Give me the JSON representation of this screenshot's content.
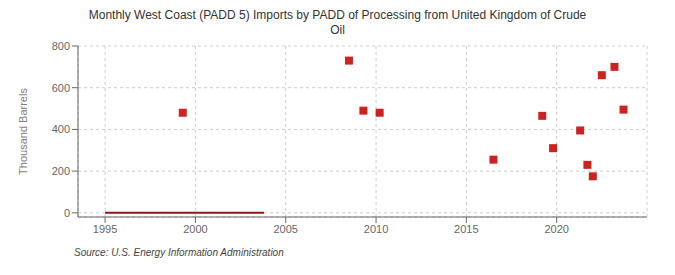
{
  "chart_data": {
    "type": "scatter",
    "title": "Monthly West Coast (PADD 5) Imports by PADD of Processing from United Kingdom of Crude\nOil",
    "ylabel": "Thousand Barrels",
    "annotations": [
      "Source: U.S. Energy Information Administration"
    ],
    "xlim": [
      1993.5,
      2025
    ],
    "xticks": [
      1995,
      2000,
      2005,
      2010,
      2015,
      2020
    ],
    "ylim": [
      -20,
      800
    ],
    "yticks": [
      0,
      200,
      400,
      600,
      800
    ],
    "grid": true,
    "series": [
      {
        "type": "line",
        "color": "#8b1a1a",
        "x": [
          1995.0,
          2003.8
        ],
        "values": [
          0,
          0
        ]
      },
      {
        "type": "scatter",
        "color": "#cc2222",
        "marker": "square",
        "x": [
          1999.3,
          2008.5,
          2009.3,
          2010.2,
          2016.5,
          2019.2,
          2019.8,
          2021.3,
          2021.7,
          2022.0,
          2022.5,
          2023.2,
          2023.7
        ],
        "values": [
          480,
          730,
          490,
          480,
          255,
          465,
          310,
          395,
          230,
          175,
          660,
          700,
          495
        ]
      }
    ]
  }
}
